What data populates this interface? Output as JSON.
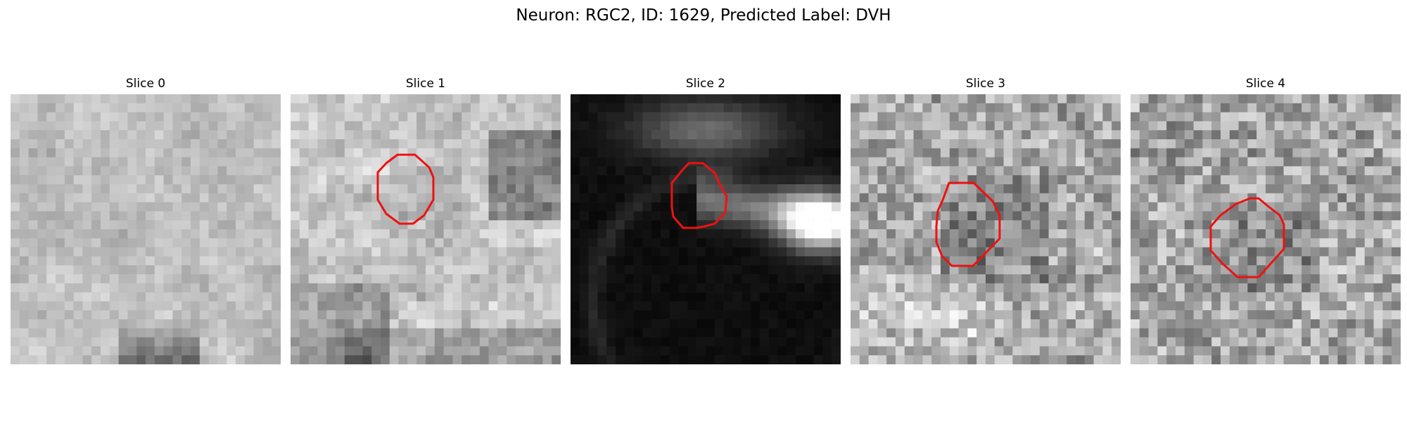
{
  "figure": {
    "title": "Neuron: RGC2, ID: 1629, Predicted Label: DVH"
  },
  "panels": [
    {
      "title": "Slice 0",
      "style": "light-noise",
      "roi": false
    },
    {
      "title": "Slice 1",
      "style": "medium-noise",
      "roi": true
    },
    {
      "title": "Slice 2",
      "style": "dark-smooth",
      "roi": true
    },
    {
      "title": "Slice 3",
      "style": "high-contrast-noise",
      "roi": true
    },
    {
      "title": "Slice 4",
      "style": "fine-noise",
      "roi": true
    }
  ],
  "colors": {
    "roi_outline": "#ee1111",
    "background": "#ffffff"
  }
}
